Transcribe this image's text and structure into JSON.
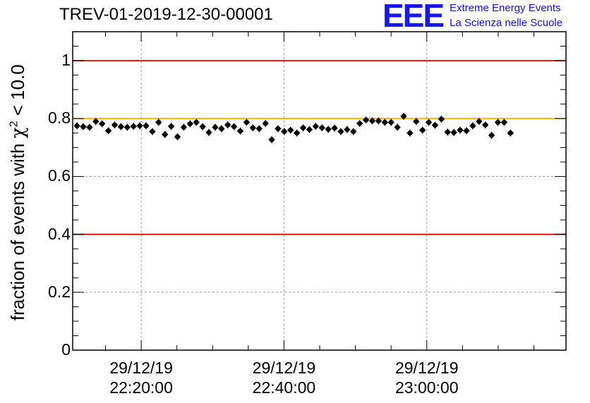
{
  "chart_data": {
    "type": "scatter",
    "title": "TREV-01-2019-12-30-00001",
    "xlabel": "",
    "ylabel": {
      "prefix": "fraction of events with ",
      "symbol": "χ",
      "sup": "2",
      "suffix": " < 10.0"
    },
    "x_unit": "minutes since 22:00:00 on 29/12/19",
    "xlim": [
      10.4,
      79.5
    ],
    "ylim": [
      0,
      1.1
    ],
    "x_ticks": [
      {
        "x": 20,
        "date": "29/12/19",
        "time": "22:20:00"
      },
      {
        "x": 40,
        "date": "29/12/19",
        "time": "22:40:00"
      },
      {
        "x": 60,
        "date": "29/12/19",
        "time": "23:00:00"
      }
    ],
    "y_ticks": [
      {
        "value": 0,
        "label": "0"
      },
      {
        "value": 0.2,
        "label": "0.2"
      },
      {
        "value": 0.4,
        "label": "0.4"
      },
      {
        "value": 0.6,
        "label": "0.6"
      },
      {
        "value": 0.8,
        "label": "0.8"
      },
      {
        "value": 1,
        "label": "1"
      }
    ],
    "grid": true,
    "reference_lines": [
      {
        "y": 1.0,
        "color": "#e01010"
      },
      {
        "y": 0.8,
        "color": "#f2b400"
      },
      {
        "y": 0.4,
        "color": "#e01010"
      }
    ],
    "series": [
      {
        "name": "fraction",
        "color": "#000000",
        "x_start": 11,
        "x_step": 0.88,
        "y_err": 0.012,
        "x_err": 0.44,
        "values": [
          0.775,
          0.772,
          0.77,
          0.79,
          0.782,
          0.758,
          0.778,
          0.772,
          0.77,
          0.773,
          0.775,
          0.775,
          0.755,
          0.787,
          0.745,
          0.773,
          0.737,
          0.77,
          0.782,
          0.787,
          0.772,
          0.752,
          0.77,
          0.765,
          0.778,
          0.772,
          0.757,
          0.787,
          0.768,
          0.765,
          0.783,
          0.727,
          0.765,
          0.755,
          0.76,
          0.75,
          0.768,
          0.762,
          0.773,
          0.768,
          0.763,
          0.767,
          0.755,
          0.762,
          0.755,
          0.783,
          0.795,
          0.792,
          0.792,
          0.787,
          0.787,
          0.77,
          0.808,
          0.75,
          0.79,
          0.76,
          0.787,
          0.777,
          0.798,
          0.753,
          0.752,
          0.76,
          0.758,
          0.775,
          0.79,
          0.778,
          0.742,
          0.787,
          0.787,
          0.75
        ]
      }
    ]
  },
  "logo": {
    "mark": "EEE",
    "line1": "Extreme Energy Events",
    "line2": "La Scienza nelle Scuole"
  }
}
